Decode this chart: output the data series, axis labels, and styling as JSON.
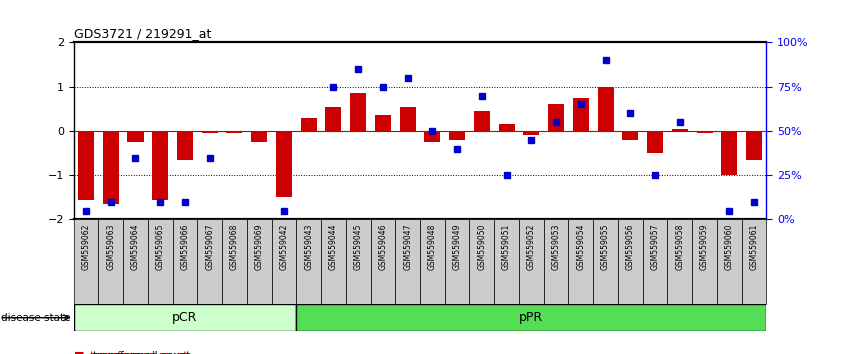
{
  "title": "GDS3721 / 219291_at",
  "samples": [
    "GSM559062",
    "GSM559063",
    "GSM559064",
    "GSM559065",
    "GSM559066",
    "GSM559067",
    "GSM559068",
    "GSM559069",
    "GSM559042",
    "GSM559043",
    "GSM559044",
    "GSM559045",
    "GSM559046",
    "GSM559047",
    "GSM559048",
    "GSM559049",
    "GSM559050",
    "GSM559051",
    "GSM559052",
    "GSM559053",
    "GSM559054",
    "GSM559055",
    "GSM559056",
    "GSM559057",
    "GSM559058",
    "GSM559059",
    "GSM559060",
    "GSM559061"
  ],
  "transformed_count": [
    -1.55,
    -1.65,
    -0.25,
    -1.55,
    -0.65,
    -0.05,
    -0.05,
    -0.25,
    -1.5,
    0.3,
    0.55,
    0.85,
    0.35,
    0.55,
    -0.25,
    -0.2,
    0.45,
    0.15,
    -0.1,
    0.6,
    0.75,
    1.0,
    -0.2,
    -0.5,
    0.05,
    -0.05,
    -1.0,
    -0.65
  ],
  "percentile_rank": [
    5,
    10,
    35,
    10,
    10,
    35,
    null,
    null,
    5,
    null,
    75,
    85,
    75,
    80,
    50,
    40,
    70,
    25,
    45,
    55,
    65,
    90,
    60,
    25,
    55,
    null,
    5,
    10
  ],
  "pCR_count": 9,
  "pPR_count": 19,
  "ylim": [
    -2,
    2
  ],
  "y2lim": [
    0,
    100
  ],
  "yticks": [
    -2,
    -1,
    0,
    1,
    2
  ],
  "y2ticks": [
    0,
    25,
    50,
    75,
    100
  ],
  "y2ticklabels": [
    "0%",
    "25%",
    "50%",
    "75%",
    "100%"
  ],
  "bar_color": "#cc0000",
  "dot_color": "#0000cc",
  "bar_width": 0.65,
  "pCR_color": "#ccffcc",
  "pPR_color": "#55dd55",
  "label_bg_color": "#cccccc",
  "zero_line_color": "#cc0000",
  "hline_color": "#000000"
}
